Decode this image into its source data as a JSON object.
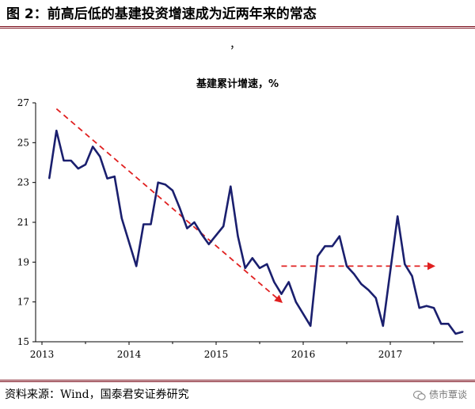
{
  "figure": {
    "title": "图 2：前高后低的基建投资增速成为近两年来的常态",
    "stray_mark": "，",
    "source": "资料来源：Wind，国泰君安证券研究",
    "watermark": "债市覃谈",
    "watermark_icon": "wechat-icon"
  },
  "chart_data": {
    "type": "line",
    "title": "基建累计增速，%",
    "xlabel": "",
    "ylabel": "",
    "x_tick_labels": [
      "2013",
      "2014",
      "2015",
      "2016",
      "2017"
    ],
    "y_ticks": [
      15,
      17,
      19,
      21,
      23,
      25,
      27
    ],
    "ylim": [
      15,
      27
    ],
    "grid": false,
    "legend": "none",
    "series": [
      {
        "color": "#1a1f6e",
        "x": [
          "2013-02",
          "2013-03",
          "2013-04",
          "2013-05",
          "2013-06",
          "2013-07",
          "2013-08",
          "2013-09",
          "2013-10",
          "2013-11",
          "2013-12",
          "2014-02",
          "2014-03",
          "2014-04",
          "2014-05",
          "2014-06",
          "2014-07",
          "2014-08",
          "2014-09",
          "2014-10",
          "2014-11",
          "2014-12",
          "2015-02",
          "2015-03",
          "2015-04",
          "2015-05",
          "2015-06",
          "2015-07",
          "2015-08",
          "2015-09",
          "2015-10",
          "2015-11",
          "2015-12",
          "2016-02",
          "2016-03",
          "2016-04",
          "2016-05",
          "2016-06",
          "2016-07",
          "2016-08",
          "2016-09",
          "2016-10",
          "2016-11",
          "2016-12",
          "2017-02",
          "2017-03",
          "2017-04",
          "2017-05",
          "2017-06",
          "2017-07",
          "2017-08",
          "2017-09",
          "2017-10",
          "2017-11"
        ],
        "y": [
          23.2,
          25.6,
          24.1,
          24.1,
          23.7,
          23.9,
          24.8,
          24.3,
          23.2,
          23.3,
          21.2,
          18.8,
          20.9,
          20.9,
          23.0,
          22.9,
          22.6,
          21.7,
          20.7,
          21.0,
          20.4,
          19.9,
          20.8,
          22.8,
          20.3,
          18.7,
          19.2,
          18.7,
          18.9,
          18.0,
          17.4,
          18.0,
          17.0,
          15.8,
          19.3,
          19.8,
          19.8,
          20.3,
          18.8,
          18.4,
          17.9,
          17.6,
          17.2,
          15.8,
          21.3,
          18.9,
          18.3,
          16.7,
          16.8,
          16.7,
          15.9,
          15.9,
          15.4,
          15.5
        ]
      }
    ],
    "annotations": [
      {
        "type": "dashed-arrow",
        "color": "#e02020",
        "from": [
          "2013-03",
          26.7
        ],
        "to": [
          "2015-10",
          17.0
        ]
      },
      {
        "type": "dashed-arrow",
        "color": "#e02020",
        "from": [
          "2015-10",
          18.8
        ],
        "to": [
          "2017-07",
          18.8
        ]
      }
    ]
  }
}
